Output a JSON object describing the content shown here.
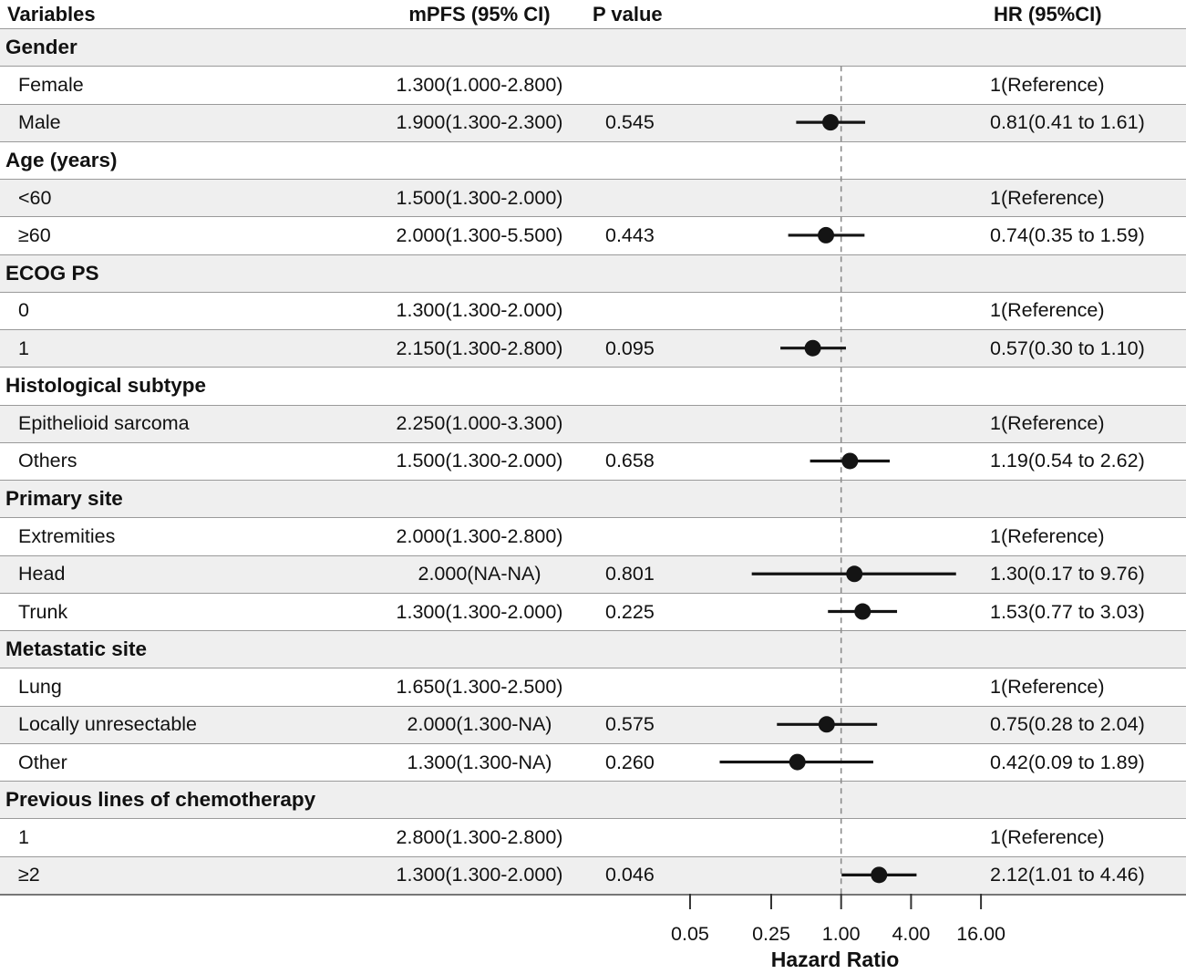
{
  "header": {
    "variables": "Variables",
    "mpfs": "mPFS (95% CI)",
    "pvalue": "P value",
    "hr": "HR (95%CI)"
  },
  "colors": {
    "shaded_row": "#efefef",
    "marker": "#141414",
    "reference_line": "#8c8c8c",
    "row_border": "#9a9a9a"
  },
  "chart_data": {
    "type": "forest",
    "xlabel": "Hazard Ratio",
    "x_scale": "log",
    "x_ticks": [
      0.05,
      0.25,
      1.0,
      4.0,
      16.0
    ],
    "x_tick_labels": [
      "0.05",
      "0.25",
      "1.00",
      "4.00",
      "16.00"
    ],
    "reference_line": 1.0,
    "rows": [
      {
        "type": "section",
        "label": "Gender"
      },
      {
        "type": "item",
        "label": "Female",
        "mpfs": "1.300(1.000-2.800)",
        "pvalue": "",
        "hr_text": "1(Reference)"
      },
      {
        "type": "item",
        "label": "Male",
        "mpfs": "1.900(1.300-2.300)",
        "pvalue": "0.545",
        "hr_text": "0.81(0.41 to 1.61)",
        "hr": 0.81,
        "ci_low": 0.41,
        "ci_high": 1.61
      },
      {
        "type": "section",
        "label": "Age (years)"
      },
      {
        "type": "item",
        "label": "<60",
        "mpfs": "1.500(1.300-2.000)",
        "pvalue": "",
        "hr_text": "1(Reference)"
      },
      {
        "type": "item",
        "label": "≥60",
        "mpfs": "2.000(1.300-5.500)",
        "pvalue": "0.443",
        "hr_text": "0.74(0.35 to 1.59)",
        "hr": 0.74,
        "ci_low": 0.35,
        "ci_high": 1.59
      },
      {
        "type": "section",
        "label": "ECOG PS"
      },
      {
        "type": "item",
        "label": "0",
        "mpfs": "1.300(1.300-2.000)",
        "pvalue": "",
        "hr_text": "1(Reference)"
      },
      {
        "type": "item",
        "label": "1",
        "mpfs": "2.150(1.300-2.800)",
        "pvalue": "0.095",
        "hr_text": "0.57(0.30 to 1.10)",
        "hr": 0.57,
        "ci_low": 0.3,
        "ci_high": 1.1
      },
      {
        "type": "section",
        "label": "Histological subtype"
      },
      {
        "type": "item",
        "label": "Epithelioid sarcoma",
        "mpfs": "2.250(1.000-3.300)",
        "pvalue": "",
        "hr_text": "1(Reference)"
      },
      {
        "type": "item",
        "label": "Others",
        "mpfs": "1.500(1.300-2.000)",
        "pvalue": "0.658",
        "hr_text": "1.19(0.54 to 2.62)",
        "hr": 1.19,
        "ci_low": 0.54,
        "ci_high": 2.62
      },
      {
        "type": "section",
        "label": "Primary site"
      },
      {
        "type": "item",
        "label": "Extremities",
        "mpfs": "2.000(1.300-2.800)",
        "pvalue": "",
        "hr_text": "1(Reference)"
      },
      {
        "type": "item",
        "label": "Head",
        "mpfs": "2.000(NA-NA)",
        "pvalue": "0.801",
        "hr_text": "1.30(0.17 to 9.76)",
        "hr": 1.3,
        "ci_low": 0.17,
        "ci_high": 9.76
      },
      {
        "type": "item",
        "label": "Trunk",
        "mpfs": "1.300(1.300-2.000)",
        "pvalue": "0.225",
        "hr_text": "1.53(0.77 to 3.03)",
        "hr": 1.53,
        "ci_low": 0.77,
        "ci_high": 3.03
      },
      {
        "type": "section",
        "label": "Metastatic site"
      },
      {
        "type": "item",
        "label": "Lung",
        "mpfs": "1.650(1.300-2.500)",
        "pvalue": "",
        "hr_text": "1(Reference)"
      },
      {
        "type": "item",
        "label": "Locally unresectable",
        "mpfs": "2.000(1.300-NA)",
        "pvalue": "0.575",
        "hr_text": "0.75(0.28 to 2.04)",
        "hr": 0.75,
        "ci_low": 0.28,
        "ci_high": 2.04
      },
      {
        "type": "item",
        "label": "Other",
        "mpfs": "1.300(1.300-NA)",
        "pvalue": "0.260",
        "hr_text": "0.42(0.09 to 1.89)",
        "hr": 0.42,
        "ci_low": 0.09,
        "ci_high": 1.89
      },
      {
        "type": "section",
        "label": "Previous lines of chemotherapy"
      },
      {
        "type": "item",
        "label": "1",
        "mpfs": "2.800(1.300-2.800)",
        "pvalue": "",
        "hr_text": "1(Reference)"
      },
      {
        "type": "item",
        "label": "≥2",
        "mpfs": "1.300(1.300-2.000)",
        "pvalue": "0.046",
        "hr_text": "2.12(1.01 to 4.46)",
        "hr": 2.12,
        "ci_low": 1.01,
        "ci_high": 4.46
      }
    ]
  }
}
